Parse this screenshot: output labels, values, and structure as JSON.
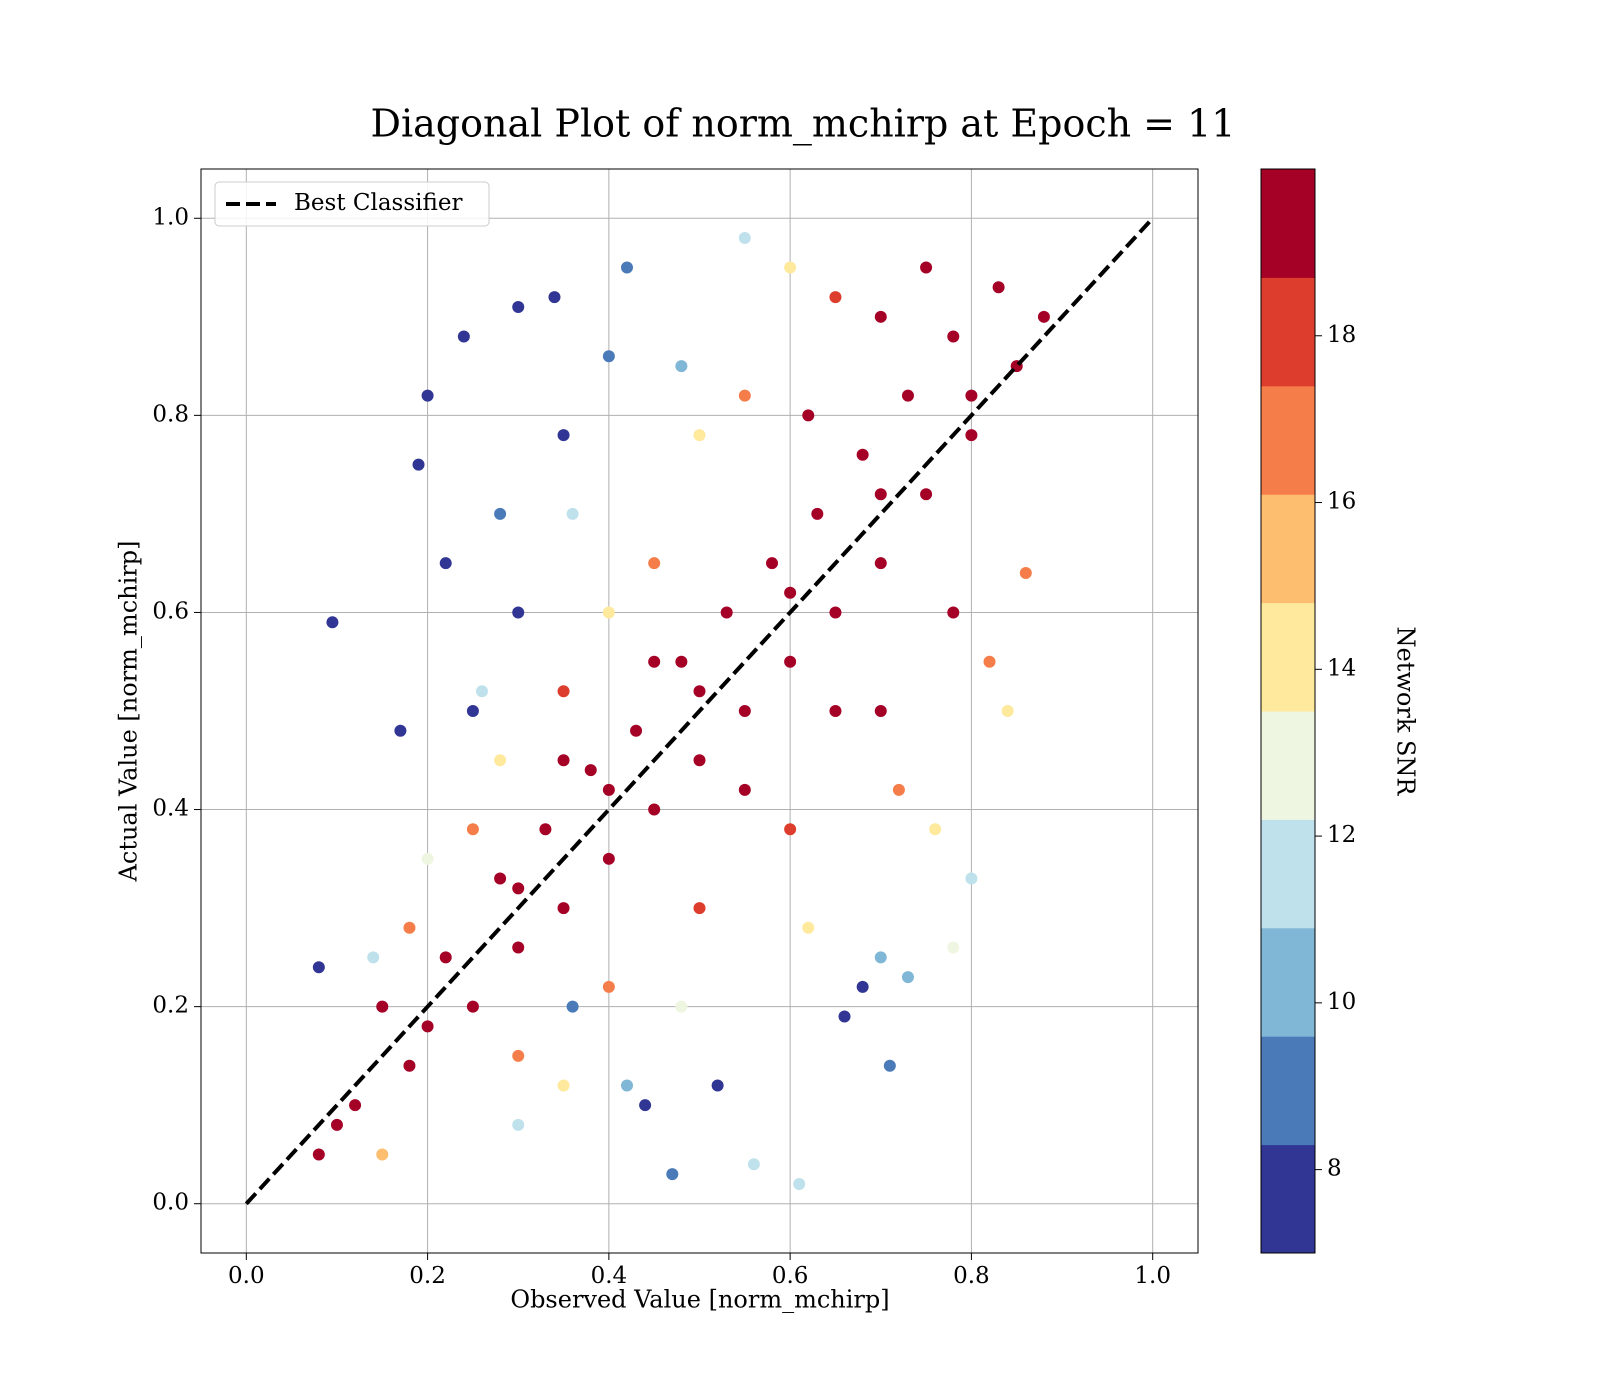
{
  "chart_data": {
    "type": "scatter",
    "title": "Diagonal Plot of norm_mchirp at Epoch = 11",
    "x_label": "Observed Value [norm_mchirp]",
    "y_label": "Actual Value [norm_mchirp]",
    "xlim": [
      -0.05,
      1.05
    ],
    "ylim": [
      -0.05,
      1.05
    ],
    "xticks": [
      {
        "value": 0,
        "label": "0.0"
      },
      0.2,
      0.4,
      0.6,
      0.8,
      {
        "value": 1,
        "label": "1.0"
      }
    ],
    "yticks": [
      {
        "value": 0,
        "label": "0.0"
      },
      0.2,
      0.4,
      0.6,
      0.8,
      {
        "value": 1,
        "label": "1.0"
      }
    ],
    "grid": true,
    "legend_position": "upper left",
    "reference_line": {
      "name": "Best Classifier",
      "color": "#000000",
      "x": [
        0,
        1
      ],
      "y": [
        0,
        1
      ]
    },
    "points": {
      "x": [
        0.095,
        0.24,
        0.3,
        0.2,
        0.19,
        0.22,
        0.28,
        0.35,
        0.4,
        0.34,
        0.25,
        0.3,
        0.42,
        0.47,
        0.44,
        0.52,
        0.66,
        0.71,
        0.68,
        0.17,
        0.08,
        0.36,
        0.26,
        0.36,
        0.48,
        0.55,
        0.3,
        0.42,
        0.56,
        0.61,
        0.7,
        0.73,
        0.8,
        0.14,
        0.28,
        0.4,
        0.5,
        0.6,
        0.35,
        0.48,
        0.62,
        0.76,
        0.84,
        0.2,
        0.78,
        0.25,
        0.35,
        0.45,
        0.55,
        0.65,
        0.3,
        0.4,
        0.5,
        0.6,
        0.72,
        0.82,
        0.86,
        0.18,
        0.15,
        0.08,
        0.12,
        0.15,
        0.18,
        0.22,
        0.25,
        0.28,
        0.3,
        0.33,
        0.35,
        0.38,
        0.4,
        0.43,
        0.45,
        0.48,
        0.5,
        0.53,
        0.55,
        0.58,
        0.6,
        0.63,
        0.65,
        0.68,
        0.7,
        0.73,
        0.75,
        0.78,
        0.8,
        0.83,
        0.85,
        0.88,
        0.1,
        0.2,
        0.3,
        0.4,
        0.5,
        0.6,
        0.7,
        0.8,
        0.45,
        0.55,
        0.65,
        0.35,
        0.75,
        0.7,
        0.62,
        0.7,
        0.78
      ],
      "y": [
        0.59,
        0.88,
        0.91,
        0.82,
        0.75,
        0.65,
        0.7,
        0.78,
        0.86,
        0.92,
        0.5,
        0.6,
        0.95,
        0.03,
        0.1,
        0.12,
        0.19,
        0.14,
        0.22,
        0.48,
        0.24,
        0.2,
        0.52,
        0.7,
        0.85,
        0.98,
        0.08,
        0.12,
        0.04,
        0.02,
        0.25,
        0.23,
        0.33,
        0.25,
        0.45,
        0.6,
        0.78,
        0.95,
        0.12,
        0.2,
        0.28,
        0.38,
        0.5,
        0.35,
        0.26,
        0.38,
        0.52,
        0.65,
        0.82,
        0.92,
        0.15,
        0.22,
        0.3,
        0.38,
        0.42,
        0.55,
        0.64,
        0.28,
        0.05,
        0.05,
        0.1,
        0.2,
        0.14,
        0.25,
        0.2,
        0.33,
        0.26,
        0.38,
        0.3,
        0.44,
        0.35,
        0.48,
        0.4,
        0.55,
        0.45,
        0.6,
        0.5,
        0.65,
        0.55,
        0.7,
        0.6,
        0.76,
        0.65,
        0.82,
        0.72,
        0.88,
        0.78,
        0.93,
        0.85,
        0.9,
        0.08,
        0.18,
        0.32,
        0.42,
        0.52,
        0.62,
        0.72,
        0.82,
        0.55,
        0.42,
        0.5,
        0.45,
        0.95,
        0.9,
        0.8,
        0.5,
        0.6
      ],
      "snr": [
        7.5,
        7.5,
        8,
        7.5,
        7.8,
        8,
        8.5,
        7.5,
        8.5,
        7.5,
        8.2,
        8,
        9,
        9.5,
        8,
        7.6,
        8,
        9.2,
        8,
        7.7,
        7.5,
        8.5,
        11,
        11.5,
        10.5,
        11,
        11,
        10.5,
        11.5,
        11.6,
        10,
        10,
        11.5,
        11,
        14,
        14.5,
        13.5,
        14,
        14,
        13,
        14.5,
        13.5,
        14,
        13,
        12.5,
        17,
        17.5,
        16.5,
        17,
        18,
        17,
        16.8,
        17.5,
        18,
        17,
        16.5,
        17,
        16.5,
        15,
        19.5,
        19.5,
        19.5,
        19.5,
        19.5,
        19.5,
        19.5,
        19.5,
        19.5,
        19.5,
        19.5,
        19.5,
        19.5,
        19.5,
        19.5,
        19.5,
        19.5,
        19.5,
        19.5,
        19.5,
        19.5,
        19.5,
        19.5,
        19.5,
        19.5,
        19.5,
        19.5,
        19.5,
        19.5,
        19.5,
        19.5,
        19.5,
        19.5,
        19.5,
        19.5,
        19.5,
        19.5,
        19.5,
        19.5,
        19.5,
        19.5,
        19.5,
        19.5,
        19.5,
        19.5,
        19.5,
        19.5,
        19.5
      ]
    },
    "colorbar": {
      "label": "Network SNR",
      "clim": [
        7,
        20
      ],
      "ticks": [
        8,
        10,
        12,
        14,
        16,
        18
      ],
      "colors": [
        "#313695",
        "#4a7ab7",
        "#80b6d6",
        "#bfe1ec",
        "#eef6e1",
        "#fee99d",
        "#fdbe6f",
        "#f57d4a",
        "#dd3d2d",
        "#a50026"
      ]
    }
  }
}
